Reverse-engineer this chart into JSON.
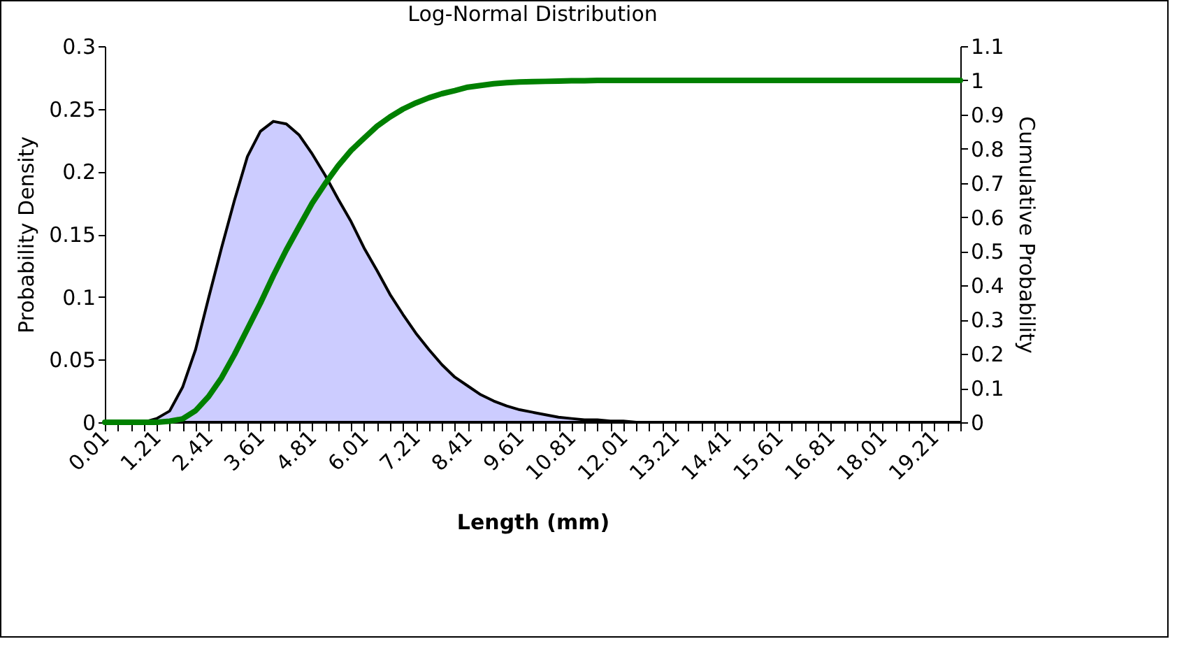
{
  "chart_data": {
    "type": "line",
    "title": "Log-Normal Distribution",
    "xlabel": "Length (mm)",
    "ylabel": "Probability Density",
    "y2label": "Cumulative Probability",
    "categories": [
      "0.01",
      null,
      null,
      null,
      "1.21",
      null,
      null,
      null,
      "2.41",
      null,
      null,
      null,
      "3.61",
      null,
      null,
      null,
      "4.81",
      null,
      null,
      null,
      "6.01",
      null,
      null,
      null,
      "7.21",
      null,
      null,
      null,
      "8.41",
      null,
      null,
      null,
      "9.61",
      null,
      null,
      null,
      "10.81",
      null,
      null,
      null,
      "12.01",
      null,
      null,
      null,
      "13.21",
      null,
      null,
      null,
      "14.41",
      null,
      null,
      null,
      "15.61",
      null,
      null,
      null,
      "16.81",
      null,
      null,
      null,
      "18.01",
      null,
      null,
      null,
      "19.21",
      null,
      null
    ],
    "series": [
      {
        "type": "area",
        "color": "#ccccff",
        "values": [
          0,
          0,
          0,
          0,
          0.003,
          0.009,
          0.028,
          0.058,
          0.099,
          0.139,
          0.177,
          0.212,
          0.232,
          0.24,
          0.238,
          0.229,
          0.214,
          0.197,
          0.178,
          0.16,
          0.139,
          0.121,
          0.102,
          0.086,
          0.071,
          0.058,
          0.046,
          0.036,
          0.029,
          0.022,
          0.017,
          0.013,
          0.01,
          0.008,
          0.006,
          0.004,
          0.003,
          0.002,
          0.002,
          0.001,
          0.001,
          0,
          0,
          0,
          0,
          0,
          0,
          0,
          0,
          0,
          0,
          0,
          0,
          0,
          0,
          0,
          0,
          0,
          0,
          0,
          0,
          0,
          0,
          0,
          0,
          0,
          0
        ]
      },
      {
        "type": "line",
        "axis": "y2",
        "color": "#008000",
        "values": [
          0,
          0,
          0,
          0,
          0,
          0.003,
          0.01,
          0.034,
          0.075,
          0.13,
          0.198,
          0.273,
          0.348,
          0.429,
          0.504,
          0.573,
          0.641,
          0.698,
          0.75,
          0.795,
          0.831,
          0.866,
          0.893,
          0.916,
          0.934,
          0.949,
          0.961,
          0.97,
          0.98,
          0.985,
          0.99,
          0.993,
          0.995,
          0.996,
          0.997,
          0.998,
          0.999,
          0.999,
          1,
          1,
          1,
          1,
          1,
          1,
          1,
          1,
          1,
          1,
          1,
          1,
          1,
          1,
          1,
          1,
          1,
          1,
          1,
          1,
          1,
          1,
          1,
          1,
          1,
          1,
          1,
          1,
          1
        ]
      }
    ],
    "ylim": [
      0,
      0.3
    ],
    "yticks": [
      0,
      0.05,
      0.1,
      0.15,
      0.2,
      0.25,
      0.3
    ],
    "y2lim": [
      0,
      1.1
    ],
    "y2ticks": [
      0,
      0.1,
      0.2,
      0.3,
      0.4,
      0.5,
      0.6,
      0.7,
      0.8,
      0.9,
      1,
      1.1
    ]
  }
}
